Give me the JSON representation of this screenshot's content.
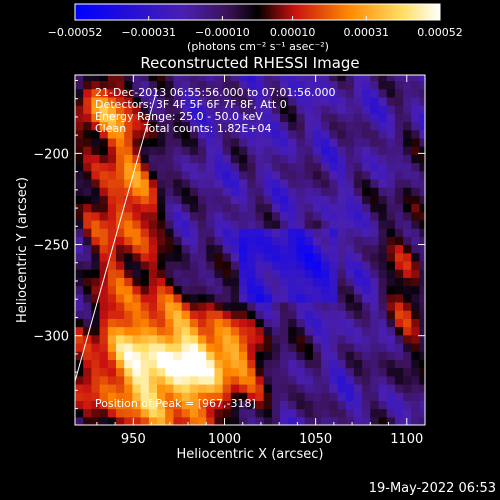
{
  "colorbar": {
    "tick_labels": [
      "−0.00052",
      "−0.00031",
      "−0.00010",
      "0.00010",
      "0.00031",
      "0.00052"
    ],
    "tick_values": [
      -0.00052,
      -0.00031,
      -0.0001,
      0.0001,
      0.00031,
      0.00052
    ],
    "range": [
      -0.00052,
      0.00052
    ],
    "unit_label": "(photons cm⁻² s⁻¹ asec⁻²)",
    "colors": [
      "#0000ff",
      "#4a1fb0",
      "#3a1255",
      "#000000",
      "#c81010",
      "#ff8800",
      "#ffe066",
      "#ffffff"
    ]
  },
  "chart_data": {
    "type": "heatmap",
    "title": "Reconstructed RHESSI Image",
    "xlabel": "Heliocentric X (arcsec)",
    "ylabel": "Heliocentric Y (arcsec)",
    "xlim": [
      918,
      1110
    ],
    "ylim": [
      -349,
      -157
    ],
    "x_ticks": [
      950,
      1000,
      1050,
      1100
    ],
    "y_ticks": [
      -200,
      -250,
      -300
    ],
    "annotations": [
      "21-Dec-2013 06:55:56.000 to 07:01:56.000",
      "Detectors: 3F 4F 5F 6F 7F 8F, Att 0",
      "Energy Range: 25.0 - 50.0 keV",
      "Clean     Total counts: 1.82E+04"
    ],
    "position_note": "Position of Peak = [967,-318]",
    "peak": [
      967,
      -318
    ],
    "limb_line": [
      [
        918,
        -325
      ],
      [
        963,
        -165
      ]
    ]
  },
  "footer": {
    "timestamp": "19-May-2022 06:53"
  }
}
